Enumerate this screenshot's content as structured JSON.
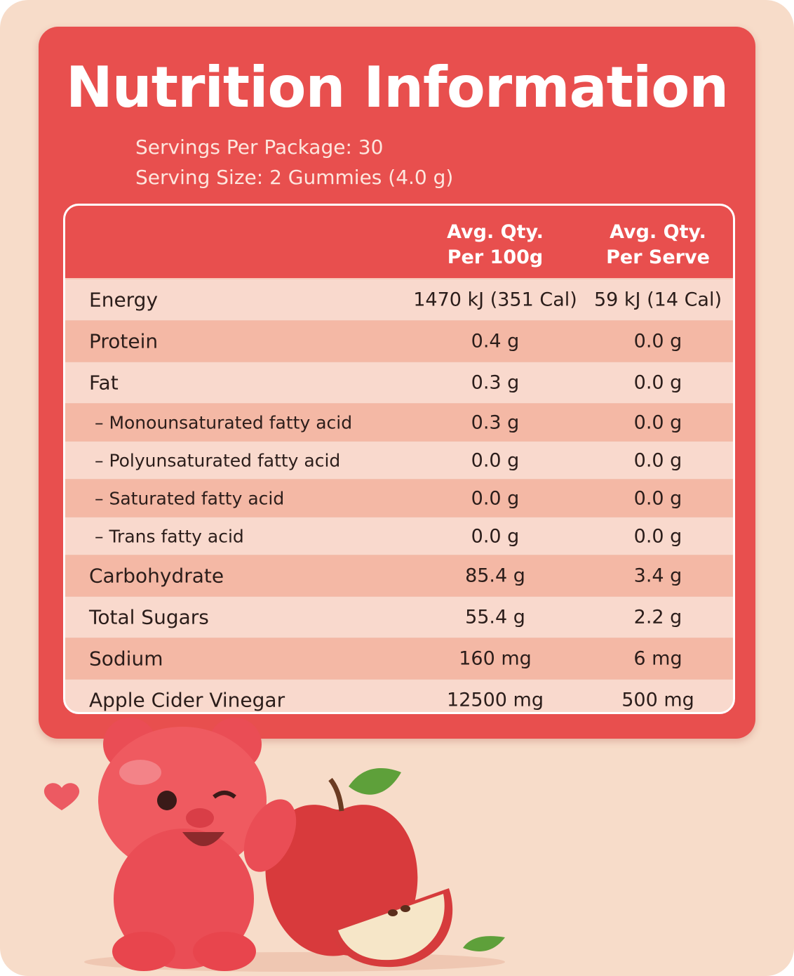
{
  "title": "Nutrition Information",
  "servings_per_package": "Servings Per Package: 30",
  "serving_size": "Serving Size: 2 Gummies (4.0 g)",
  "table": {
    "headers": [
      [
        "Avg. Qty.",
        "Per 100g"
      ],
      [
        "Avg. Qty.",
        "Per Serve"
      ]
    ],
    "rows": [
      {
        "name": "Energy",
        "per_100g": "1470 kJ (351 Cal)",
        "per_serve": "59 kJ (14 Cal)"
      },
      {
        "name": "Protein",
        "per_100g": "0.4 g",
        "per_serve": "0.0 g"
      },
      {
        "name": "Fat",
        "per_100g": "0.3 g",
        "per_serve": "0.0 g",
        "sub": [
          {
            "name": "– Monounsaturated fatty acid",
            "per_100g": "0.3 g",
            "per_serve": "0.0 g"
          },
          {
            "name": "– Polyunsaturated fatty acid",
            "per_100g": "0.0 g",
            "per_serve": "0.0 g"
          },
          {
            "name": "– Saturated fatty acid",
            "per_100g": "0.0 g",
            "per_serve": "0.0 g"
          },
          {
            "name": "– Trans fatty acid",
            "per_100g": "0.0 g",
            "per_serve": "0.0 g"
          }
        ]
      },
      {
        "name": "Carbohydrate",
        "per_100g": "85.4 g",
        "per_serve": "3.4 g"
      },
      {
        "name": "Total Sugars",
        "per_100g": "55.4 g",
        "per_serve": "2.2 g"
      },
      {
        "name": "Sodium",
        "per_100g": "160 mg",
        "per_serve": "6 mg"
      },
      {
        "name": "Apple Cider Vinegar",
        "per_100g": "12500 mg",
        "per_serve": "500 mg"
      }
    ]
  }
}
